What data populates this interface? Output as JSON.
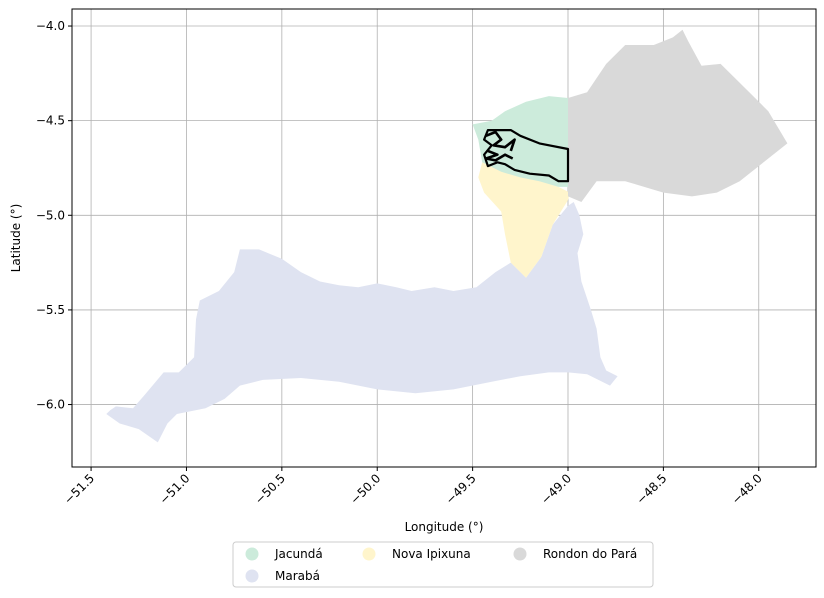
{
  "chart_data": {
    "type": "map",
    "xlabel": "Longitude (°)",
    "ylabel": "Latitude (°)",
    "xlim": [
      -51.6,
      -47.7
    ],
    "ylim": [
      -6.33,
      -3.91
    ],
    "x_ticks": [
      -51.5,
      -51.0,
      -50.5,
      -50.0,
      -49.5,
      -49.0,
      -48.5,
      -48.0
    ],
    "x_tick_labels": [
      "−51.5",
      "−51.0",
      "−50.5",
      "−50.0",
      "−49.5",
      "−49.0",
      "−48.5",
      "−48.0"
    ],
    "y_ticks": [
      -4.0,
      -4.5,
      -5.0,
      -5.5,
      -6.0
    ],
    "y_tick_labels": [
      "−4.0",
      "−4.5",
      "−5.0",
      "−5.5",
      "−6.0"
    ],
    "grid": true,
    "legend_position": "bottom-center",
    "regions": [
      {
        "name": "Marabá",
        "color": "#dfe3f1",
        "coords": [
          [
            -51.4,
            -6.03
          ],
          [
            -51.37,
            -6.01
          ],
          [
            -51.28,
            -6.02
          ],
          [
            -51.22,
            -5.95
          ],
          [
            -51.12,
            -5.83
          ],
          [
            -51.04,
            -5.83
          ],
          [
            -50.96,
            -5.75
          ],
          [
            -50.95,
            -5.55
          ],
          [
            -50.93,
            -5.45
          ],
          [
            -50.83,
            -5.4
          ],
          [
            -50.75,
            -5.3
          ],
          [
            -50.72,
            -5.18
          ],
          [
            -50.62,
            -5.18
          ],
          [
            -50.5,
            -5.23
          ],
          [
            -50.4,
            -5.3
          ],
          [
            -50.3,
            -5.35
          ],
          [
            -50.2,
            -5.37
          ],
          [
            -50.1,
            -5.38
          ],
          [
            -50.0,
            -5.36
          ],
          [
            -49.9,
            -5.38
          ],
          [
            -49.82,
            -5.4
          ],
          [
            -49.7,
            -5.38
          ],
          [
            -49.6,
            -5.4
          ],
          [
            -49.48,
            -5.38
          ],
          [
            -49.38,
            -5.3
          ],
          [
            -49.3,
            -5.25
          ],
          [
            -49.22,
            -5.33
          ],
          [
            -49.14,
            -5.22
          ],
          [
            -49.08,
            -5.05
          ],
          [
            -49.0,
            -4.95
          ],
          [
            -48.97,
            -4.93
          ],
          [
            -48.94,
            -5.0
          ],
          [
            -48.92,
            -5.1
          ],
          [
            -48.95,
            -5.2
          ],
          [
            -48.93,
            -5.35
          ],
          [
            -48.88,
            -5.5
          ],
          [
            -48.85,
            -5.6
          ],
          [
            -48.83,
            -5.75
          ],
          [
            -48.8,
            -5.82
          ],
          [
            -48.74,
            -5.85
          ],
          [
            -48.78,
            -5.9
          ],
          [
            -48.9,
            -5.84
          ],
          [
            -49.0,
            -5.83
          ],
          [
            -49.1,
            -5.83
          ],
          [
            -49.25,
            -5.85
          ],
          [
            -49.4,
            -5.88
          ],
          [
            -49.6,
            -5.92
          ],
          [
            -49.8,
            -5.94
          ],
          [
            -50.0,
            -5.92
          ],
          [
            -50.2,
            -5.88
          ],
          [
            -50.4,
            -5.86
          ],
          [
            -50.6,
            -5.87
          ],
          [
            -50.72,
            -5.9
          ],
          [
            -50.8,
            -5.97
          ],
          [
            -50.9,
            -6.02
          ],
          [
            -51.05,
            -6.05
          ],
          [
            -51.1,
            -6.1
          ],
          [
            -51.15,
            -6.2
          ],
          [
            -51.25,
            -6.13
          ],
          [
            -51.35,
            -6.1
          ],
          [
            -51.42,
            -6.05
          ]
        ]
      },
      {
        "name": "Nova Ipixuna",
        "color": "#fff5cc",
        "coords": [
          [
            -49.45,
            -4.72
          ],
          [
            -49.35,
            -4.75
          ],
          [
            -49.2,
            -4.8
          ],
          [
            -49.05,
            -4.85
          ],
          [
            -48.99,
            -4.88
          ],
          [
            -49.0,
            -4.92
          ],
          [
            -49.08,
            -5.05
          ],
          [
            -49.14,
            -5.22
          ],
          [
            -49.22,
            -5.33
          ],
          [
            -49.3,
            -5.25
          ],
          [
            -49.33,
            -5.1
          ],
          [
            -49.35,
            -4.98
          ],
          [
            -49.44,
            -4.88
          ],
          [
            -49.47,
            -4.8
          ]
        ]
      },
      {
        "name": "Jacundá",
        "color": "#ccebdb",
        "coords": [
          [
            -49.5,
            -4.52
          ],
          [
            -49.4,
            -4.5
          ],
          [
            -49.33,
            -4.45
          ],
          [
            -49.22,
            -4.4
          ],
          [
            -49.1,
            -4.37
          ],
          [
            -49.0,
            -4.38
          ],
          [
            -49.0,
            -4.85
          ],
          [
            -49.05,
            -4.85
          ],
          [
            -49.15,
            -4.82
          ],
          [
            -49.25,
            -4.8
          ],
          [
            -49.35,
            -4.77
          ],
          [
            -49.45,
            -4.72
          ],
          [
            -49.47,
            -4.6
          ]
        ]
      },
      {
        "name": "Rondon do Pará",
        "color": "#d9d9d9",
        "coords": [
          [
            -49.0,
            -4.38
          ],
          [
            -48.9,
            -4.35
          ],
          [
            -48.8,
            -4.2
          ],
          [
            -48.7,
            -4.1
          ],
          [
            -48.55,
            -4.1
          ],
          [
            -48.45,
            -4.06
          ],
          [
            -48.4,
            -4.02
          ],
          [
            -48.37,
            -4.08
          ],
          [
            -48.3,
            -4.21
          ],
          [
            -48.2,
            -4.2
          ],
          [
            -48.1,
            -4.3
          ],
          [
            -47.95,
            -4.45
          ],
          [
            -47.85,
            -4.62
          ],
          [
            -47.95,
            -4.7
          ],
          [
            -48.1,
            -4.82
          ],
          [
            -48.22,
            -4.88
          ],
          [
            -48.35,
            -4.9
          ],
          [
            -48.5,
            -4.88
          ],
          [
            -48.7,
            -4.82
          ],
          [
            -48.85,
            -4.82
          ],
          [
            -48.93,
            -4.93
          ],
          [
            -49.0,
            -4.9
          ]
        ]
      }
    ],
    "outline": {
      "color": "#000000",
      "coords": [
        [
          -49.42,
          -4.55
        ],
        [
          -49.3,
          -4.55
        ],
        [
          -49.25,
          -4.58
        ],
        [
          -49.15,
          -4.62
        ],
        [
          -49.0,
          -4.65
        ],
        [
          -49.0,
          -4.82
        ],
        [
          -49.05,
          -4.82
        ],
        [
          -49.1,
          -4.79
        ],
        [
          -49.2,
          -4.78
        ],
        [
          -49.28,
          -4.76
        ],
        [
          -49.33,
          -4.73
        ],
        [
          -49.37,
          -4.72
        ],
        [
          -49.42,
          -4.74
        ],
        [
          -49.44,
          -4.68
        ],
        [
          -49.4,
          -4.63
        ],
        [
          -49.44,
          -4.6
        ]
      ]
    },
    "outline_detail": [
      [
        [
          -49.43,
          -4.58
        ],
        [
          -49.38,
          -4.56
        ],
        [
          -49.35,
          -4.6
        ],
        [
          -49.39,
          -4.63
        ],
        [
          -49.33,
          -4.64
        ],
        [
          -49.28,
          -4.6
        ],
        [
          -49.3,
          -4.66
        ]
      ],
      [
        [
          -49.42,
          -4.66
        ],
        [
          -49.37,
          -4.68
        ],
        [
          -49.43,
          -4.7
        ],
        [
          -49.38,
          -4.71
        ],
        [
          -49.33,
          -4.68
        ],
        [
          -49.29,
          -4.7
        ]
      ]
    ]
  },
  "legend": {
    "items": [
      {
        "label": "Jacundá",
        "color": "#ccebdb"
      },
      {
        "label": "Marabá",
        "color": "#dfe3f1"
      },
      {
        "label": "Nova Ipixuna",
        "color": "#fff5cc"
      },
      {
        "label": "Rondon do Pará",
        "color": "#d9d9d9"
      }
    ]
  }
}
